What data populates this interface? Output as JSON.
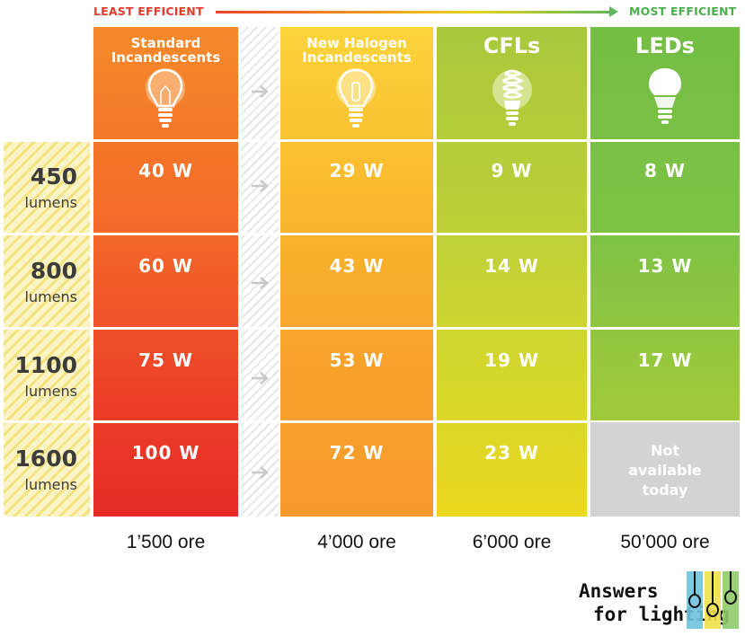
{
  "efficiency_bar": {
    "least_label": "LEAST EFFICIENT",
    "most_label": "MOST EFFICIENT"
  },
  "chart_data": {
    "type": "table",
    "columns": [
      "Standard Incandescents",
      "New Halogen Incandescents",
      "CFLs",
      "LEDs"
    ],
    "rows": [
      {
        "lumens": "450",
        "unit": "lumens",
        "values": [
          "40 W",
          "29 W",
          "9 W",
          "8 W"
        ]
      },
      {
        "lumens": "800",
        "unit": "lumens",
        "values": [
          "60 W",
          "43 W",
          "14 W",
          "13 W"
        ]
      },
      {
        "lumens": "1100",
        "unit": "lumens",
        "values": [
          "75 W",
          "53 W",
          "19 W",
          "17 W"
        ]
      },
      {
        "lumens": "1600",
        "unit": "lumens",
        "values": [
          "100 W",
          "72 W",
          "23 W",
          "Not available today"
        ]
      }
    ],
    "lifetime": [
      "1’500 ore",
      "4’000 ore",
      "6’000 ore",
      "50’000 ore"
    ]
  },
  "headers": {
    "col1_line1": "Standard",
    "col1_line2": "Incandescents",
    "col2_line1": "New Halogen",
    "col2_line2": "Incandescents",
    "col3": "CFLs",
    "col4": "LEDs"
  },
  "not_available": {
    "line1": "Not",
    "line2": "available",
    "line3": "today"
  },
  "logo": {
    "line1": "Answers",
    "line2": "for lighting"
  },
  "colors": {
    "least": "#e23b2a",
    "most": "#4cae4c",
    "incandescent": "#f36a28",
    "halogen": "#f9b52c",
    "cfl": "#bcd038",
    "led": "#7cc245",
    "unavailable": "#d3d3d3"
  },
  "icons": [
    "incandescent-bulb-icon",
    "halogen-bulb-icon",
    "cfl-bulb-icon",
    "led-bulb-icon",
    "arrow-right-icon"
  ]
}
